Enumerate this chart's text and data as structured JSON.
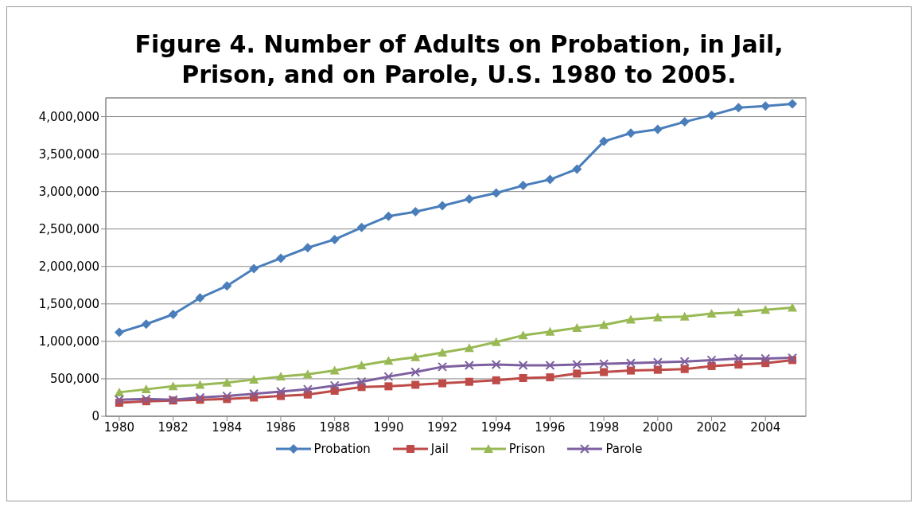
{
  "chart_data": {
    "type": "line",
    "title": "Figure 4. Number of Adults on Probation, in Jail, Prison, and on Parole, U.S. 1980 to 2005.",
    "x": [
      1980,
      1981,
      1982,
      1983,
      1984,
      1985,
      1986,
      1987,
      1988,
      1989,
      1990,
      1991,
      1992,
      1993,
      1994,
      1995,
      1996,
      1997,
      1998,
      1999,
      2000,
      2001,
      2002,
      2003,
      2004,
      2005
    ],
    "series": [
      {
        "name": "Probation",
        "color": "#4a7ebb",
        "marker": "diamond",
        "values": [
          1120000,
          1230000,
          1360000,
          1580000,
          1740000,
          1970000,
          2110000,
          2250000,
          2360000,
          2520000,
          2670000,
          2730000,
          2810000,
          2900000,
          2980000,
          3080000,
          3160000,
          3300000,
          3670000,
          3780000,
          3830000,
          3930000,
          4020000,
          4120000,
          4140000,
          4170000
        ]
      },
      {
        "name": "Jail",
        "color": "#be4b48",
        "marker": "square",
        "values": [
          180000,
          200000,
          210000,
          220000,
          230000,
          250000,
          270000,
          290000,
          340000,
          390000,
          400000,
          420000,
          440000,
          460000,
          480000,
          510000,
          520000,
          570000,
          590000,
          610000,
          620000,
          630000,
          670000,
          690000,
          710000,
          750000
        ]
      },
      {
        "name": "Prison",
        "color": "#98b954",
        "marker": "triangle",
        "values": [
          320000,
          360000,
          400000,
          420000,
          450000,
          490000,
          530000,
          560000,
          610000,
          680000,
          740000,
          790000,
          850000,
          910000,
          990000,
          1080000,
          1130000,
          1180000,
          1220000,
          1290000,
          1320000,
          1330000,
          1370000,
          1390000,
          1420000,
          1450000
        ]
      },
      {
        "name": "Parole",
        "color": "#7d60a0",
        "marker": "cross",
        "values": [
          220000,
          230000,
          220000,
          250000,
          270000,
          300000,
          330000,
          360000,
          410000,
          460000,
          530000,
          590000,
          660000,
          680000,
          690000,
          680000,
          680000,
          690000,
          700000,
          710000,
          720000,
          730000,
          750000,
          770000,
          770000,
          780000
        ]
      }
    ],
    "xlim": [
      1979.5,
      2005.5
    ],
    "xticks": [
      1980,
      1982,
      1984,
      1986,
      1988,
      1990,
      1992,
      1994,
      1996,
      1998,
      2000,
      2002,
      2004
    ],
    "ylim": [
      0,
      4250000
    ],
    "yticks": [
      0,
      {
        "value": 500000,
        "label": "500,000"
      },
      {
        "value": 1000000,
        "label": "1,000,000"
      },
      {
        "value": 1500000,
        "label": "1,500,000"
      },
      {
        "value": 2000000,
        "label": "2,000,000"
      },
      {
        "value": 2500000,
        "label": "2,500,000"
      },
      {
        "value": 3000000,
        "label": "3,000,000"
      },
      {
        "value": 3500000,
        "label": "3,500,000"
      },
      {
        "value": 4000000,
        "label": "4,000,000"
      }
    ],
    "grid": "y",
    "legend": "bottom"
  }
}
